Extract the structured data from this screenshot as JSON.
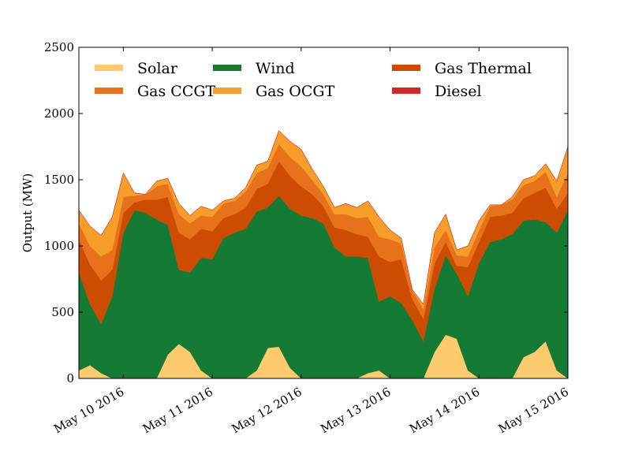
{
  "chart_data": {
    "type": "area",
    "stacked": true,
    "title": "",
    "xlabel": "",
    "ylabel": "Output (MW)",
    "ylim": [
      0,
      2500
    ],
    "yticks": [
      0,
      500,
      1000,
      1500,
      2000,
      2500
    ],
    "xlim": [
      "2016-05-09T12:00",
      "2016-05-15T00:00"
    ],
    "xticks": [
      {
        "date": "2016-05-10T00:00",
        "label": "May 10 2016"
      },
      {
        "date": "2016-05-11T00:00",
        "label": "May 11 2016"
      },
      {
        "date": "2016-05-12T00:00",
        "label": "May 12 2016"
      },
      {
        "date": "2016-05-13T00:00",
        "label": "May 13 2016"
      },
      {
        "date": "2016-05-14T00:00",
        "label": "May 14 2016"
      },
      {
        "date": "2016-05-15T00:00",
        "label": "May 15 2016"
      }
    ],
    "legend_position": "top, inside plot, 3 columns",
    "grid": false,
    "x": [
      "2016-05-09T12:00",
      "2016-05-09T15:00",
      "2016-05-09T18:00",
      "2016-05-09T21:00",
      "2016-05-10T00:00",
      "2016-05-10T03:00",
      "2016-05-10T06:00",
      "2016-05-10T09:00",
      "2016-05-10T12:00",
      "2016-05-10T15:00",
      "2016-05-10T18:00",
      "2016-05-10T21:00",
      "2016-05-11T00:00",
      "2016-05-11T03:00",
      "2016-05-11T06:00",
      "2016-05-11T09:00",
      "2016-05-11T12:00",
      "2016-05-11T15:00",
      "2016-05-11T18:00",
      "2016-05-11T21:00",
      "2016-05-12T00:00",
      "2016-05-12T03:00",
      "2016-05-12T06:00",
      "2016-05-12T09:00",
      "2016-05-12T12:00",
      "2016-05-12T15:00",
      "2016-05-12T18:00",
      "2016-05-12T21:00",
      "2016-05-13T00:00",
      "2016-05-13T03:00",
      "2016-05-13T06:00",
      "2016-05-13T09:00",
      "2016-05-13T12:00",
      "2016-05-13T15:00",
      "2016-05-13T18:00",
      "2016-05-13T21:00",
      "2016-05-14T00:00",
      "2016-05-14T03:00",
      "2016-05-14T06:00",
      "2016-05-14T09:00",
      "2016-05-14T12:00",
      "2016-05-14T15:00",
      "2016-05-14T18:00",
      "2016-05-14T21:00",
      "2016-05-15T00:00"
    ],
    "series": [
      {
        "name": "Solar",
        "color": "#fdcb6e",
        "values": [
          60,
          100,
          40,
          0,
          0,
          0,
          0,
          0,
          180,
          260,
          200,
          60,
          0,
          0,
          0,
          0,
          60,
          230,
          240,
          80,
          0,
          0,
          0,
          0,
          0,
          0,
          40,
          60,
          0,
          0,
          0,
          0,
          200,
          330,
          300,
          60,
          0,
          0,
          0,
          0,
          160,
          200,
          280,
          60,
          0
        ]
      },
      {
        "name": "Wind",
        "color": "#157a34",
        "values": [
          740,
          460,
          370,
          620,
          1100,
          1270,
          1250,
          1200,
          980,
          560,
          600,
          850,
          900,
          1060,
          1100,
          1130,
          1200,
          1060,
          1140,
          1200,
          1230,
          1210,
          1170,
          990,
          920,
          920,
          870,
          520,
          620,
          570,
          440,
          280,
          480,
          600,
          490,
          560,
          870,
          1030,
          1050,
          1090,
          1030,
          1000,
          900,
          1040,
          1270
        ]
      },
      {
        "name": "Gas Thermal",
        "color": "#cc4c02",
        "values": [
          250,
          300,
          330,
          200,
          150,
          60,
          100,
          150,
          210,
          280,
          250,
          220,
          210,
          150,
          140,
          160,
          170,
          180,
          260,
          250,
          220,
          180,
          130,
          150,
          200,
          170,
          160,
          340,
          260,
          330,
          160,
          170,
          190,
          100,
          60,
          220,
          160,
          190,
          180,
          160,
          170,
          200,
          260,
          180,
          130
        ]
      },
      {
        "name": "Gas CCGT",
        "color": "#e8711c",
        "values": [
          120,
          140,
          180,
          150,
          120,
          50,
          40,
          100,
          100,
          140,
          120,
          100,
          110,
          110,
          100,
          120,
          120,
          120,
          130,
          140,
          150,
          110,
          90,
          100,
          120,
          120,
          150,
          150,
          170,
          120,
          70,
          70,
          120,
          90,
          80,
          80,
          90,
          80,
          80,
          100,
          100,
          90,
          120,
          90,
          150
        ]
      },
      {
        "name": "Gas OCGT",
        "color": "#f69d2a",
        "values": [
          100,
          150,
          160,
          250,
          180,
          20,
          0,
          40,
          40,
          80,
          60,
          70,
          50,
          20,
          20,
          30,
          60,
          50,
          100,
          120,
          130,
          80,
          60,
          50,
          80,
          80,
          120,
          150,
          70,
          40,
          0,
          40,
          110,
          120,
          40,
          80,
          70,
          10,
          0,
          20,
          40,
          40,
          60,
          120,
          200
        ]
      },
      {
        "name": "Diesel",
        "color": "#d62728",
        "values": [
          0,
          0,
          0,
          0,
          0,
          0,
          0,
          0,
          0,
          0,
          0,
          0,
          0,
          0,
          0,
          0,
          0,
          0,
          0,
          0,
          0,
          0,
          0,
          0,
          0,
          0,
          0,
          0,
          0,
          0,
          0,
          0,
          0,
          0,
          0,
          0,
          0,
          0,
          0,
          0,
          0,
          0,
          0,
          0,
          0
        ]
      }
    ]
  }
}
